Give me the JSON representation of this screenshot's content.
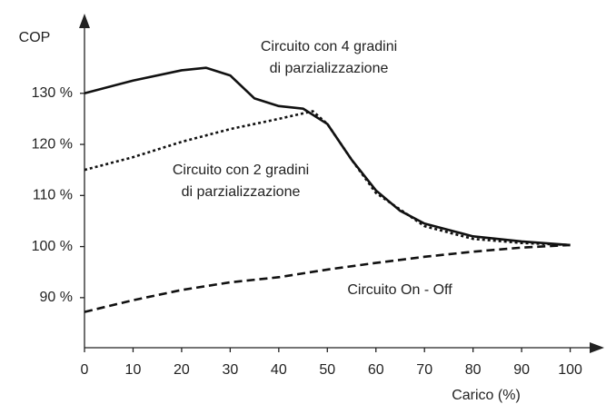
{
  "chart_data": {
    "type": "line",
    "ylabel": "COP",
    "xlabel": "Carico (%)",
    "xlim": [
      0,
      107
    ],
    "ylim": [
      80.2,
      145.6
    ],
    "xticks": [
      0,
      10,
      20,
      30,
      40,
      50,
      60,
      70,
      80,
      90,
      100
    ],
    "yticks": [
      {
        "value": 90,
        "label": "90 %"
      },
      {
        "value": 100,
        "label": "100 %"
      },
      {
        "value": 110,
        "label": "110 %"
      },
      {
        "value": 120,
        "label": "120 %"
      },
      {
        "value": 130,
        "label": "130 %"
      }
    ],
    "series": [
      {
        "name": [
          "Circuito con 4 gradini",
          "di parzializzazione"
        ],
        "color": "#111",
        "style": "solid",
        "x": [
          0,
          10,
          20,
          25,
          30,
          35,
          40,
          45,
          50,
          55,
          60,
          65,
          70,
          80,
          90,
          100
        ],
        "values": [
          130,
          132.5,
          134.5,
          135,
          133.5,
          129,
          127.5,
          127,
          124,
          117,
          111,
          107,
          104.5,
          102,
          101,
          100.3
        ]
      },
      {
        "name": [
          "Circuito con 2 gradini",
          "di parzializzazione"
        ],
        "color": "#111",
        "style": "dotted",
        "x": [
          0,
          10,
          20,
          30,
          40,
          47,
          50,
          55,
          60,
          70,
          80,
          90,
          100
        ],
        "values": [
          115,
          117.5,
          120.5,
          123,
          125,
          126.5,
          124,
          117,
          110.5,
          104,
          101.5,
          100.7,
          100.3
        ]
      },
      {
        "name": [
          "Circuito On - Off"
        ],
        "color": "#111",
        "style": "dashed",
        "x": [
          0,
          10,
          20,
          30,
          40,
          50,
          60,
          70,
          80,
          90,
          100
        ],
        "values": [
          87.2,
          89.5,
          91.5,
          93,
          94,
          95.5,
          96.8,
          98,
          99,
          99.8,
          100.3
        ]
      }
    ]
  }
}
